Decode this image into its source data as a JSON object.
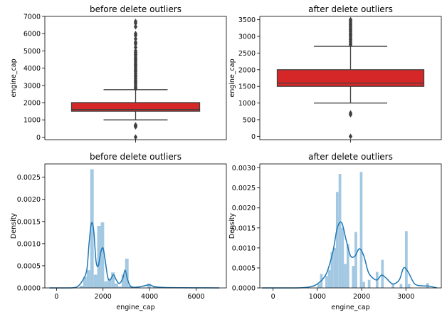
{
  "chart_data": [
    {
      "type": "box",
      "title": "before delete outliers",
      "xlabel": "",
      "ylabel": "engine_cap",
      "ylim": [
        -150,
        7000
      ],
      "yticks": [
        0,
        1000,
        2000,
        3000,
        4000,
        5000,
        6000,
        7000
      ],
      "box": {
        "whisker_low": 1000,
        "q1": 1500,
        "median": 1600,
        "q3": 2000,
        "whisker_high": 2750
      },
      "outliers": [
        0,
        600,
        650,
        700,
        2800,
        2900,
        3000,
        3100,
        3200,
        3300,
        3400,
        3500,
        3600,
        3700,
        3800,
        3900,
        4000,
        4100,
        4200,
        4300,
        4400,
        4500,
        4600,
        4700,
        4800,
        4900,
        5000,
        5200,
        5400,
        5500,
        5700,
        5900,
        6000,
        6400,
        6600,
        6700
      ],
      "color": "#d62728"
    },
    {
      "type": "box",
      "title": "after delete outliers",
      "xlabel": "",
      "ylabel": "engine_cap",
      "ylim": [
        -100,
        3600
      ],
      "yticks": [
        0,
        500,
        1000,
        1500,
        2000,
        2500,
        3000,
        3500
      ],
      "box": {
        "whisker_low": 1000,
        "q1": 1500,
        "median": 1600,
        "q3": 2000,
        "whisker_high": 2700
      },
      "outliers": [
        0,
        650,
        700,
        2750,
        2800,
        2850,
        2900,
        2950,
        3000,
        3050,
        3100,
        3150,
        3200,
        3250,
        3300,
        3350,
        3400,
        3450,
        3500
      ],
      "color": "#d62728"
    },
    {
      "type": "histogram",
      "title": "before delete outliers",
      "xlabel": "engine_cap",
      "ylabel": "Density",
      "xlim": [
        -500,
        7300
      ],
      "ylim": [
        0,
        0.0028
      ],
      "xticks": [
        0,
        2000,
        4000,
        6000
      ],
      "yticks": [
        0,
        0.0005,
        0.001,
        0.0015,
        0.002,
        0.0025
      ],
      "yticklabels": [
        "0.0000",
        "0.0005",
        "0.0010",
        "0.0015",
        "0.0020",
        "0.0025"
      ],
      "bins": [
        [
          1000,
          1150,
          5e-05
        ],
        [
          1150,
          1300,
          0.00025
        ],
        [
          1300,
          1450,
          0.0004
        ],
        [
          1450,
          1600,
          0.00268
        ],
        [
          1600,
          1750,
          0.0003
        ],
        [
          1750,
          1900,
          0.0014
        ],
        [
          1900,
          2050,
          0.00148
        ],
        [
          2050,
          2200,
          0.00015
        ],
        [
          2200,
          2350,
          0.0002
        ],
        [
          2350,
          2500,
          0.00035
        ],
        [
          2500,
          2650,
          0.0001
        ],
        [
          2650,
          2800,
          3e-05
        ],
        [
          2800,
          2950,
          0.0003
        ],
        [
          2950,
          3100,
          0.00066
        ],
        [
          3100,
          3250,
          5e-05
        ],
        [
          3450,
          3600,
          3e-05
        ],
        [
          3900,
          4050,
          0.0001
        ],
        [
          4150,
          4300,
          4e-05
        ]
      ],
      "kde": [
        [
          -300,
          0
        ],
        [
          600,
          0
        ],
        [
          900,
          3e-05
        ],
        [
          1100,
          0.00015
        ],
        [
          1300,
          0.0004
        ],
        [
          1400,
          0.001
        ],
        [
          1500,
          0.00146
        ],
        [
          1600,
          0.0013
        ],
        [
          1700,
          0.0006
        ],
        [
          1800,
          0.0005
        ],
        [
          1900,
          0.0008
        ],
        [
          2000,
          0.0009
        ],
        [
          2100,
          0.0006
        ],
        [
          2200,
          0.00025
        ],
        [
          2300,
          0.00018
        ],
        [
          2450,
          0.0003
        ],
        [
          2550,
          0.0002
        ],
        [
          2700,
          0.0001
        ],
        [
          2850,
          0.00022
        ],
        [
          2950,
          0.0004
        ],
        [
          3050,
          0.0002
        ],
        [
          3200,
          3e-05
        ],
        [
          3500,
          2e-05
        ],
        [
          3800,
          5e-05
        ],
        [
          4000,
          7e-05
        ],
        [
          4200,
          3e-05
        ],
        [
          4600,
          1e-05
        ],
        [
          5200,
          5e-06
        ],
        [
          6000,
          3e-06
        ],
        [
          7000,
          0
        ]
      ],
      "bar_color": "#9ec5e0",
      "line_color": "#1f77b4"
    },
    {
      "type": "histogram",
      "title": "after delete outliers",
      "xlabel": "engine_cap",
      "ylabel": "Density",
      "xlim": [
        -300,
        3800
      ],
      "ylim": [
        0,
        0.0031
      ],
      "xticks": [
        0,
        1000,
        2000,
        3000
      ],
      "yticks": [
        0,
        0.0005,
        0.001,
        0.0015,
        0.002,
        0.0025,
        0.003
      ],
      "yticklabels": [
        "0.0000",
        "0.0005",
        "0.0010",
        "0.0015",
        "0.0020",
        "0.0025",
        "0.0030"
      ],
      "bins": [
        [
          1000,
          1060,
          0.0001
        ],
        [
          1060,
          1120,
          0.00035
        ],
        [
          1180,
          1240,
          0.0003
        ],
        [
          1240,
          1300,
          0.00045
        ],
        [
          1300,
          1360,
          0.0009
        ],
        [
          1360,
          1420,
          0.001
        ],
        [
          1420,
          1480,
          0.0024
        ],
        [
          1480,
          1540,
          0.00285
        ],
        [
          1540,
          1600,
          0.0015
        ],
        [
          1600,
          1660,
          0.0006
        ],
        [
          1660,
          1720,
          0.0011
        ],
        [
          1780,
          1840,
          0.00055
        ],
        [
          1840,
          1900,
          0.0014
        ],
        [
          1960,
          2020,
          0.0029
        ],
        [
          2020,
          2080,
          0.00015
        ],
        [
          2140,
          2200,
          0.0002
        ],
        [
          2320,
          2380,
          0.0004
        ],
        [
          2440,
          2500,
          0.0007
        ],
        [
          2680,
          2740,
          0.0001
        ],
        [
          2860,
          2920,
          0.0001
        ],
        [
          2980,
          3040,
          0.00142
        ],
        [
          3040,
          3100,
          0.0001
        ],
        [
          3460,
          3520,
          0.00012
        ]
      ],
      "kde": [
        [
          -250,
          0
        ],
        [
          500,
          0
        ],
        [
          800,
          2e-05
        ],
        [
          1000,
          0.0001
        ],
        [
          1200,
          0.00035
        ],
        [
          1350,
          0.0009
        ],
        [
          1450,
          0.0015
        ],
        [
          1550,
          0.00163
        ],
        [
          1650,
          0.0012
        ],
        [
          1750,
          0.0008
        ],
        [
          1850,
          0.0008
        ],
        [
          1950,
          0.00098
        ],
        [
          2050,
          0.0008
        ],
        [
          2150,
          0.0004
        ],
        [
          2250,
          0.00025
        ],
        [
          2350,
          0.0002
        ],
        [
          2450,
          0.00032
        ],
        [
          2550,
          0.00025
        ],
        [
          2700,
          0.0001
        ],
        [
          2850,
          0.0002
        ],
        [
          2950,
          0.0005
        ],
        [
          3050,
          0.0004
        ],
        [
          3200,
          0.0001
        ],
        [
          3400,
          5e-05
        ],
        [
          3500,
          5e-05
        ],
        [
          3700,
          0
        ]
      ],
      "bar_color": "#9ec5e0",
      "line_color": "#1f77b4"
    }
  ]
}
